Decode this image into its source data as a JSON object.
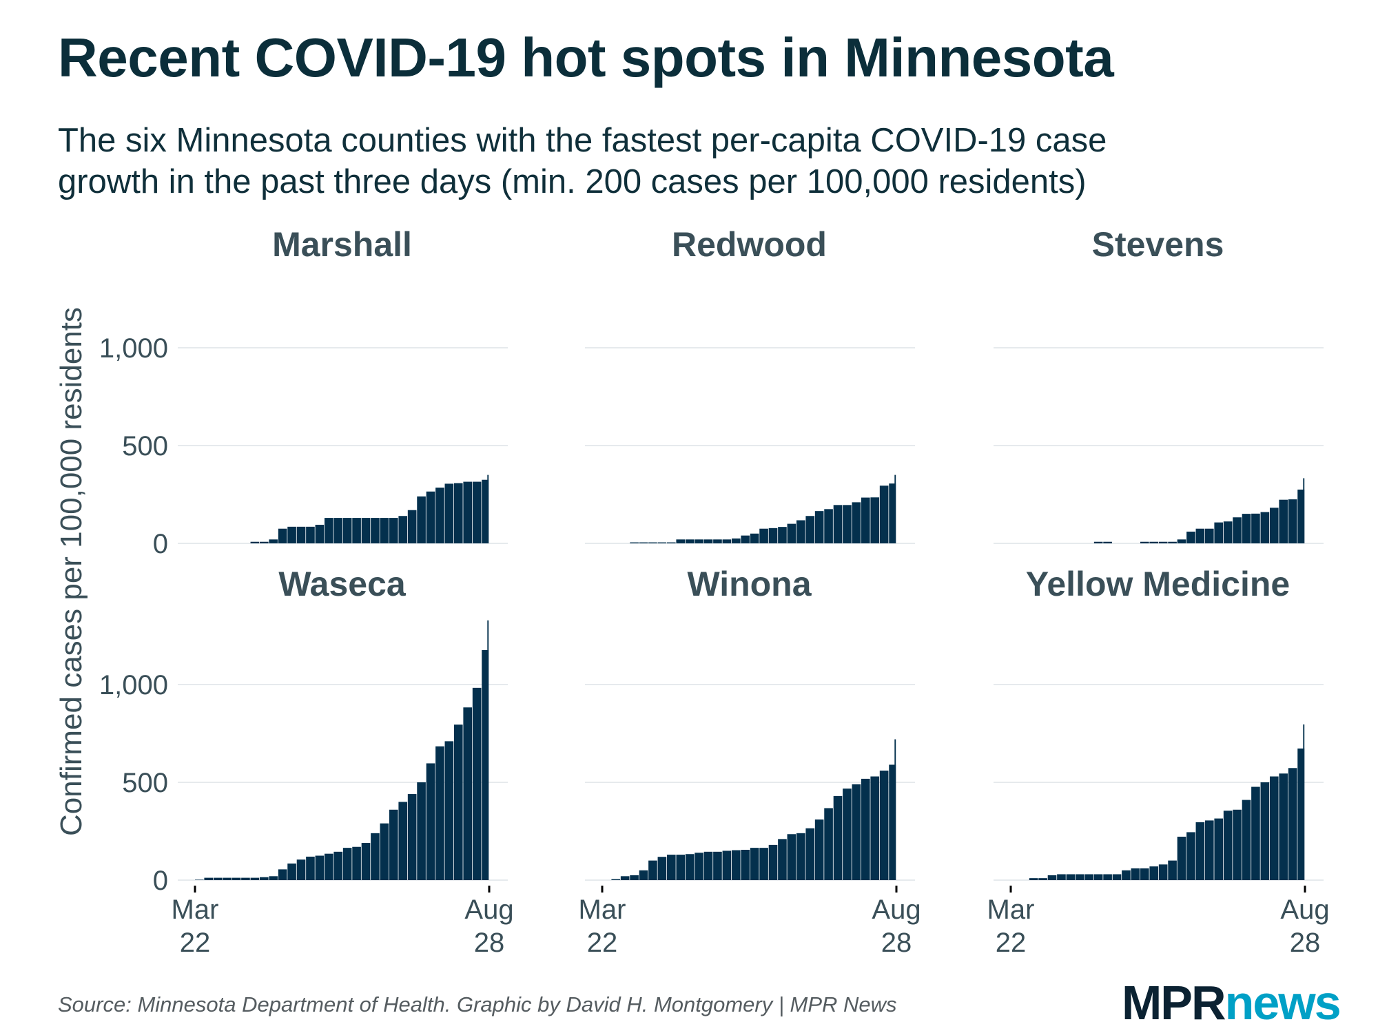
{
  "title": "Recent COVID-19 hot spots in Minnesota",
  "subtitle_line1": "The six Minnesota counties with the fastest per-capita COVID-19 case",
  "subtitle_line2": "growth in the past three days (min. 200 cases per 100,000 residents)",
  "source": "Source: Minnesota Department of Health. Graphic by David H. Montgomery | MPR News",
  "logo": {
    "part1": "MPR",
    "part2": "news"
  },
  "colors": {
    "bar": "#04304d",
    "grid": "#e6eaed",
    "text": "#3a4f58",
    "logo_dark": "#0b2232",
    "logo_accent": "#00a0c6"
  },
  "chart_data": {
    "type": "bar",
    "layout": "small multiples, 2 rows x 3 columns, shared axes",
    "ylabel": "Confirmed cases per 100,000 residents",
    "xlabel": "",
    "ylim": [
      0,
      1350
    ],
    "yticks": [
      0,
      500,
      1000
    ],
    "ytick_labels": [
      "0",
      "500",
      "1,000"
    ],
    "xticks": [
      {
        "line1": "Mar",
        "line2": "22"
      },
      {
        "line1": "Aug",
        "line2": "28"
      }
    ],
    "grid": true,
    "x": [
      "Mar 22",
      "Mar 27",
      "Apr 1",
      "Apr 6",
      "Apr 11",
      "Apr 16",
      "Apr 21",
      "Apr 26",
      "May 1",
      "May 6",
      "May 11",
      "May 16",
      "May 21",
      "May 26",
      "May 31",
      "Jun 5",
      "Jun 10",
      "Jun 15",
      "Jun 20",
      "Jun 25",
      "Jun 30",
      "Jul 5",
      "Jul 10",
      "Jul 15",
      "Jul 20",
      "Jul 25",
      "Jul 30",
      "Aug 4",
      "Aug 9",
      "Aug 14",
      "Aug 19",
      "Aug 24",
      "Aug 28"
    ],
    "series": [
      {
        "name": "Marshall",
        "values": [
          0,
          0,
          0,
          0,
          0,
          0,
          8,
          8,
          20,
          75,
          85,
          85,
          85,
          95,
          130,
          130,
          130,
          130,
          130,
          130,
          130,
          130,
          140,
          170,
          240,
          265,
          285,
          305,
          308,
          315,
          315,
          325,
          350
        ]
      },
      {
        "name": "Redwood",
        "values": [
          0,
          0,
          0,
          5,
          5,
          5,
          5,
          5,
          20,
          20,
          20,
          20,
          20,
          20,
          25,
          40,
          50,
          75,
          78,
          84,
          100,
          118,
          140,
          165,
          175,
          196,
          196,
          210,
          234,
          235,
          295,
          306,
          350
        ]
      },
      {
        "name": "Stevens",
        "values": [
          0,
          0,
          0,
          0,
          0,
          0,
          0,
          0,
          0,
          8,
          8,
          0,
          0,
          0,
          8,
          8,
          8,
          8,
          20,
          60,
          75,
          75,
          107,
          112,
          133,
          151,
          152,
          160,
          182,
          223,
          225,
          275,
          333
        ]
      },
      {
        "name": "Waseca",
        "values": [
          2,
          12,
          12,
          12,
          12,
          12,
          12,
          15,
          20,
          55,
          85,
          105,
          120,
          125,
          135,
          145,
          165,
          170,
          190,
          240,
          290,
          360,
          400,
          440,
          500,
          597,
          684,
          710,
          795,
          883,
          983,
          1176,
          1328
        ]
      },
      {
        "name": "Winona",
        "values": [
          0,
          5,
          20,
          25,
          50,
          100,
          119,
          130,
          130,
          133,
          140,
          145,
          145,
          150,
          153,
          155,
          165,
          165,
          180,
          210,
          235,
          240,
          265,
          310,
          368,
          430,
          468,
          490,
          518,
          530,
          560,
          590,
          720
        ]
      },
      {
        "name": "Yellow Medicine",
        "values": [
          0,
          0,
          10,
          10,
          25,
          30,
          30,
          30,
          30,
          30,
          30,
          30,
          50,
          60,
          60,
          70,
          80,
          100,
          222,
          245,
          296,
          305,
          315,
          355,
          360,
          410,
          477,
          500,
          530,
          545,
          573,
          673,
          796
        ]
      }
    ]
  }
}
